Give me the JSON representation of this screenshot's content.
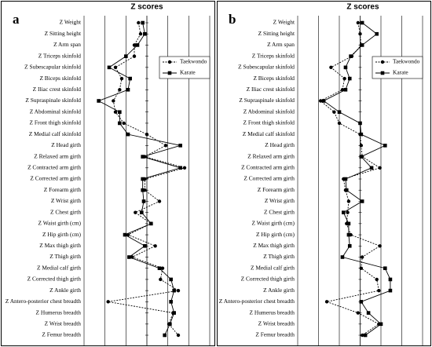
{
  "chart_data": [
    {
      "type": "line",
      "title": "Z scores",
      "panel": "a",
      "categories": [
        "Z Weight",
        "Z Sitting height",
        "Z Arm span",
        "Z Triceps skinfold",
        "Z Subescapular skinfold",
        "Z Biceps skinfold",
        "Z Iliac crest skinfold",
        "Z Supraspinale skinfold",
        "Z Abdominal skinfold",
        "Z Front thigh skinfold",
        "Z Medial calf skinfold",
        "Z Head girth",
        "Z Relaxed arm girth",
        "Z Contracted arm girth",
        "Z Corrected arm girth",
        "Z Forearm girth",
        "Z Wrist girth",
        "Z Chest girth",
        "Z Waist girth (cm)",
        "Z Hip girth (cm)",
        "Z Max thigh girth",
        "Z Thigh girth",
        "Z Medial calf girth",
        "Z Corrected thigh girth",
        "Z Ankle girth",
        "Z Antero-posterior chest breadth",
        "Z Humerus breadth",
        "Z Wrist breadth",
        "Z Femur breadth"
      ],
      "series": [
        {
          "name": "Taekwondo",
          "color": "#000000",
          "marker": "circle",
          "linestyle": "dotted",
          "values": [
            -0.4,
            -0.3,
            -0.6,
            -0.6,
            -1.5,
            -1.2,
            -1.3,
            -1.6,
            -1.5,
            -1.1,
            0,
            0.9,
            -0.1,
            1.8,
            -0.1,
            -0.1,
            0.6,
            -0.55,
            0.2,
            -0.9,
            0.4,
            -0.7,
            0.75,
            0.65,
            1.5,
            -1.85,
            1.25,
            1.05,
            1.5
          ]
        },
        {
          "name": "Karate",
          "color": "#000000",
          "marker": "square",
          "linestyle": "solid",
          "values": [
            -0.2,
            -0.1,
            -0.45,
            -1.0,
            -1.8,
            -0.8,
            -0.9,
            -2.3,
            -1.3,
            -1.3,
            -0.9,
            1.6,
            -0.2,
            1.6,
            -0.2,
            -0.2,
            -0.15,
            -0.25,
            0.2,
            -1.05,
            -0.1,
            -0.85,
            0.6,
            1.15,
            1.3,
            1.15,
            1.3,
            1.1,
            0.85
          ]
        }
      ],
      "xlim": [
        -3,
        3
      ],
      "xticks": [
        -3,
        -2,
        -1,
        0,
        1,
        2,
        3
      ],
      "grid": true,
      "legend": "upper right"
    },
    {
      "type": "line",
      "title": "Z scores",
      "panel": "b",
      "categories": [
        "Z Weight",
        "Z Sitting height",
        "Z Arm span",
        "Z Triceps skinfold",
        "Z Subescapular skinfold",
        "Z Biceps skinfold",
        "Z Iliac crest skinfold",
        "Z Supraspinale skinfold",
        "Z Abdominal skinfold",
        "Z Front thigh skinfold",
        "Z Medial calf skinfold",
        "Z Head girth",
        "Z Relaxed arm girth",
        "Z Contracted arm girth",
        "Z Corrected arm girth",
        "Z Forearm girth",
        "Z Wrist girth",
        "Z Chest girth",
        "Z Waist girth (cm)",
        "Z Hip girth (cm)",
        "Z Max thigh girth",
        "Z Thigh girth",
        "Z Medial calf girth",
        "Z Corrected thigh girth",
        "Z Ankle girth",
        "Z Antero-posterior chest breadth",
        "Z Humerus breadth",
        "Z Wrist breadth",
        "Z Femur breadth"
      ],
      "series": [
        {
          "name": "Taekwondo",
          "color": "#000000",
          "marker": "circle",
          "linestyle": "dotted",
          "values": [
            -0.1,
            0,
            0.05,
            -0.4,
            -1.4,
            -0.75,
            -0.85,
            -1.9,
            -1.25,
            -1.0,
            0,
            0.05,
            0.1,
            0.95,
            -0.8,
            -0.7,
            -0.55,
            -0.6,
            -0.65,
            -0.45,
            0.95,
            0.1,
            0.05,
            0.8,
            0.9,
            -1.6,
            -0.1,
            0.9,
            0.1
          ]
        },
        {
          "name": "Karate",
          "color": "#000000",
          "marker": "square",
          "linestyle": "solid",
          "values": [
            0.1,
            0.8,
            0.1,
            -0.45,
            -0.7,
            -0.5,
            -0.7,
            -1.75,
            -1.0,
            0,
            0.05,
            1.2,
            0.05,
            0.55,
            -0.7,
            -0.65,
            0.1,
            -0.8,
            -0.55,
            -0.55,
            -0.5,
            -0.85,
            1.2,
            1.45,
            1.45,
            0.05,
            0.4,
            1.0,
            0.25
          ]
        }
      ],
      "xlim": [
        -3,
        3
      ],
      "xticks": [
        -3,
        -2,
        -1,
        0,
        1,
        2,
        3
      ],
      "grid": true,
      "legend": "upper right"
    }
  ]
}
